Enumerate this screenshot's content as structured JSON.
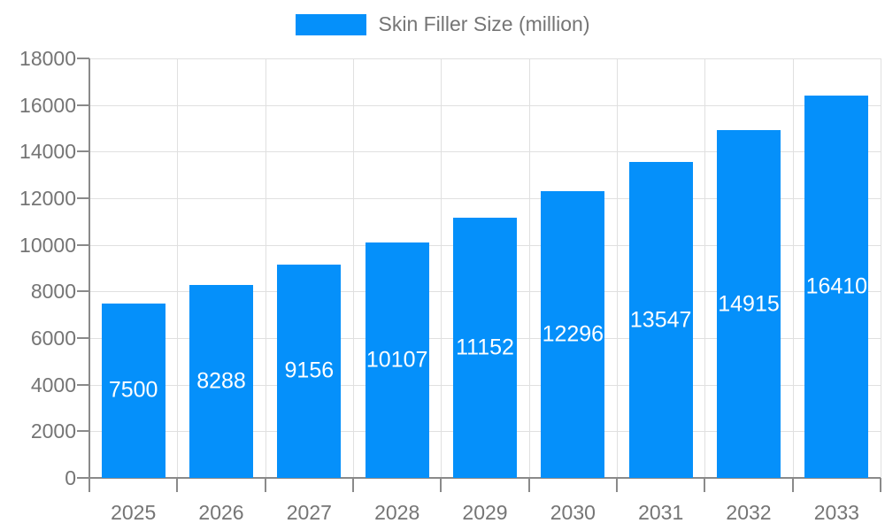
{
  "chart_data": {
    "type": "bar",
    "title": "Skin Filler Size (million)",
    "legend": {
      "label": "Skin Filler Size (million)",
      "position": "top-center"
    },
    "categories": [
      "2025",
      "2026",
      "2027",
      "2028",
      "2029",
      "2030",
      "2031",
      "2032",
      "2033"
    ],
    "series": [
      {
        "name": "Skin Filler Size (million)",
        "values": [
          7500,
          8288,
          9156,
          10107,
          11152,
          12296,
          13547,
          14915,
          16410
        ]
      }
    ],
    "data_labels": [
      "7500",
      "8288",
      "9156",
      "10107",
      "11152",
      "12296",
      "13547",
      "14915",
      "16410"
    ],
    "xlabel": "",
    "ylabel": "",
    "ylim": [
      0,
      18000
    ],
    "ytick_step": 2000,
    "ytick_labels": [
      "0",
      "2000",
      "4000",
      "6000",
      "8000",
      "10000",
      "12000",
      "14000",
      "16000",
      "18000"
    ],
    "grid": "horizontal and vertical, light gray",
    "colors": {
      "bar": "#0590fa",
      "bar_label_text": "#ffffff",
      "axis_line": "#8a8a8a",
      "gridline": "#e0e0e0",
      "tick_text": "#757575",
      "legend_text": "#757575",
      "background": "#ffffff"
    }
  }
}
